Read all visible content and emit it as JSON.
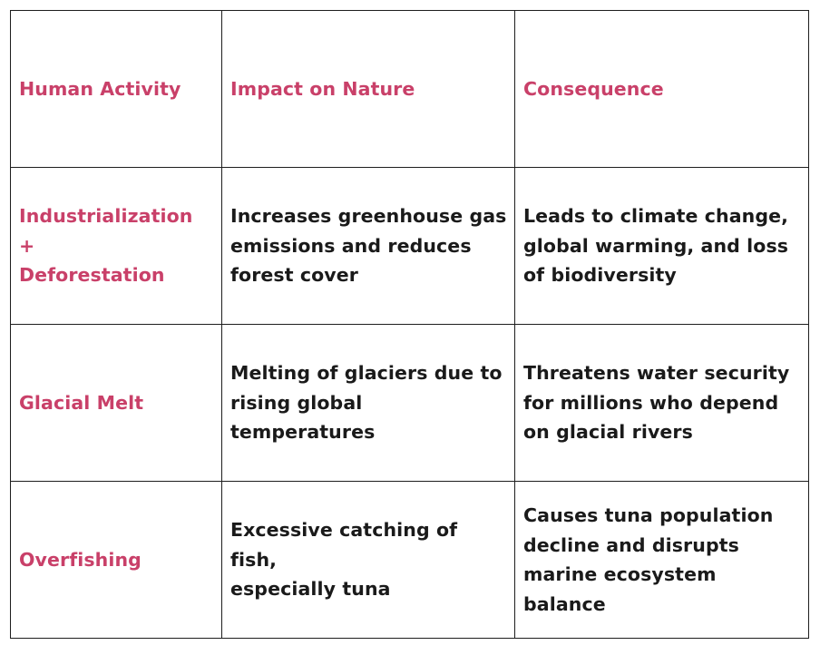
{
  "table": {
    "headers": [
      "Human Activity",
      "Impact on Nature",
      "Consequence"
    ],
    "rows": [
      {
        "activity": "Industrialization +\nDeforestation",
        "impact": "Increases greenhouse gas\nemissions and reduces\nforest cover",
        "consequence": "Leads to climate change,\nglobal warming, and loss\nof biodiversity"
      },
      {
        "activity": "Glacial Melt",
        "impact": "Melting of glaciers due to\nrising global temperatures",
        "consequence": "Threatens water security\nfor millions who depend\non glacial rivers"
      },
      {
        "activity": "Overfishing",
        "impact": "Excessive catching of fish,\nespecially tuna",
        "consequence": "Causes tuna population\ndecline and disrupts\nmarine ecosystem balance"
      }
    ]
  },
  "colors": {
    "accent": "#c94069",
    "text": "#1a1a1a",
    "border": "#1e1e1e",
    "background": "#ffffff"
  }
}
